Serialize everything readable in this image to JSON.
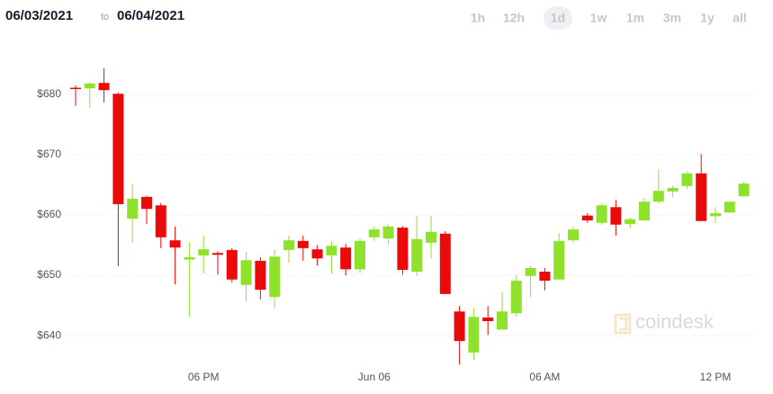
{
  "header": {
    "from": "06/03/2021",
    "to_word": "to",
    "to": "06/04/2021",
    "ranges": [
      "1h",
      "12h",
      "1d",
      "1w",
      "1m",
      "3m",
      "1y",
      "all"
    ],
    "selected_range": "1d"
  },
  "chart_data": {
    "type": "candlestick",
    "x": [
      13.5,
      14,
      14.5,
      15,
      15.5,
      16,
      16.5,
      17,
      17.5,
      18,
      18.5,
      19,
      19.5,
      20,
      20.5,
      21,
      21.5,
      22,
      22.5,
      23,
      23.5,
      24,
      24.5,
      25,
      25.5,
      26,
      26.5,
      27,
      27.5,
      28,
      28.5,
      29,
      29.5,
      30,
      30.5,
      31,
      31.5,
      32,
      32.5,
      33,
      33.5,
      34,
      34.5,
      35,
      35.5,
      36,
      36.5,
      37
    ],
    "open": [
      681.1,
      681.0,
      681.9,
      680.1,
      659.4,
      663.0,
      661.6,
      655.8,
      652.6,
      653.3,
      653.7,
      654.2,
      648.4,
      652.4,
      646.4,
      654.2,
      655.7,
      654.3,
      653.3,
      654.6,
      651.0,
      656.3,
      656.1,
      657.9,
      650.6,
      655.4,
      656.9,
      644.0,
      637.2,
      643.0,
      641.0,
      643.7,
      649.9,
      650.6,
      649.3,
      655.8,
      659.9,
      658.7,
      661.3,
      658.5,
      659.1,
      662.2,
      663.9,
      664.8,
      666.9,
      659.8,
      660.4,
      663.1
    ],
    "high": [
      681.5,
      682.0,
      684.3,
      680.3,
      665.1,
      663.2,
      662.0,
      658.1,
      655.5,
      656.6,
      654.0,
      654.5,
      653.9,
      653.0,
      654.3,
      656.6,
      656.6,
      655.0,
      655.7,
      655.2,
      656.1,
      658.1,
      658.4,
      658.2,
      659.9,
      659.9,
      657.3,
      644.9,
      644.5,
      644.9,
      647.2,
      650.1,
      651.6,
      651.2,
      657.0,
      658.1,
      660.3,
      661.9,
      662.5,
      659.6,
      662.8,
      667.6,
      664.9,
      667.2,
      670.1,
      661.3,
      662.2,
      665.5
    ],
    "low": [
      678.1,
      677.8,
      678.7,
      651.5,
      655.4,
      658.5,
      654.5,
      648.5,
      643.1,
      650.3,
      650.1,
      648.8,
      645.7,
      646.0,
      644.5,
      652.1,
      652.4,
      651.6,
      650.3,
      650.0,
      650.4,
      655.7,
      655.1,
      650.1,
      649.9,
      652.8,
      646.9,
      635.2,
      636.0,
      640.1,
      641.0,
      643.1,
      646.4,
      647.5,
      649.3,
      655.4,
      658.7,
      658.4,
      656.6,
      657.8,
      659.1,
      661.9,
      663.0,
      664.3,
      659.0,
      658.7,
      660.4,
      663.1
    ],
    "close": [
      681.0,
      681.8,
      680.7,
      661.8,
      662.7,
      661.0,
      656.3,
      654.6,
      653.0,
      654.3,
      653.4,
      649.3,
      652.5,
      647.6,
      653.1,
      655.8,
      654.5,
      652.8,
      654.9,
      651.0,
      655.7,
      657.6,
      658.1,
      650.9,
      656.0,
      657.2,
      646.9,
      639.1,
      643.1,
      642.4,
      644.0,
      649.1,
      651.2,
      649.1,
      655.7,
      657.6,
      659.1,
      661.6,
      658.4,
      659.3,
      662.2,
      664.0,
      664.5,
      666.9,
      659.0,
      660.3,
      662.2,
      665.2
    ],
    "up_color": "#8fe22c",
    "down_color": "#ea0a0a",
    "xlim": [
      13.2,
      37.3
    ],
    "xticks": [
      {
        "value": 18,
        "label": "06 PM"
      },
      {
        "value": 24,
        "label": "Jun 06"
      },
      {
        "value": 30,
        "label": "06 AM"
      },
      {
        "value": 36,
        "label": "12 PM"
      }
    ],
    "ylim": [
      633.3,
      686.7
    ],
    "yticks": [
      {
        "value": 640,
        "label": "$640"
      },
      {
        "value": 650,
        "label": "$650"
      },
      {
        "value": 660,
        "label": "$660"
      },
      {
        "value": 670,
        "label": "$670"
      },
      {
        "value": 680,
        "label": "$680"
      }
    ],
    "grid": true,
    "watermark": "coindesk"
  }
}
